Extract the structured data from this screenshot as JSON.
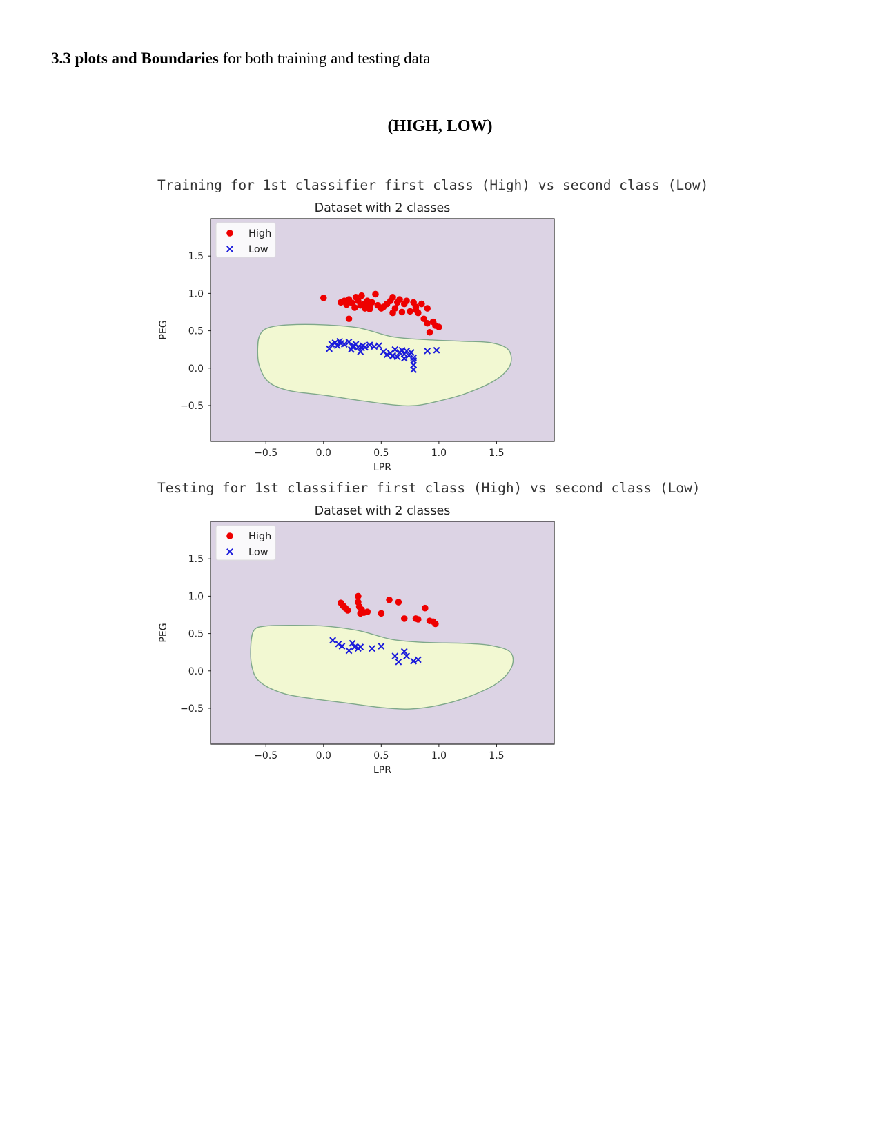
{
  "heading": {
    "bold": "3.3 plots and Boundaries",
    "rest": " for both training and testing data"
  },
  "subheading": "(HIGH, LOW)",
  "captions": [
    "Training for 1st classifier first class (High) vs second class (Low)",
    "Testing for 1st classifier first class (High) vs second class (Low)"
  ],
  "colors": {
    "background_region": "#dcd3e4",
    "decision_region": "#f2f8d2",
    "boundary": "#7fa88a",
    "high": "#ee0000",
    "low": "#1a1adb"
  },
  "chart_data": [
    {
      "type": "scatter",
      "title": "Dataset with 2 classes",
      "xlabel": "LPR",
      "ylabel": "PEG",
      "xlim": [
        -0.98,
        2.0
      ],
      "ylim": [
        -0.98,
        2.0
      ],
      "xticks": [
        "−0.5",
        "0.0",
        "0.5",
        "1.0",
        "1.5"
      ],
      "xtick_values": [
        -0.5,
        0.0,
        0.5,
        1.0,
        1.5
      ],
      "yticks": [
        "1.5",
        "1.0",
        "0.5",
        "0.0",
        "−0.5"
      ],
      "ytick_values": [
        1.5,
        1.0,
        0.5,
        0.0,
        -0.5
      ],
      "legend": "upper left",
      "boundary": [
        [
          -0.55,
          0.45
        ],
        [
          -0.48,
          0.54
        ],
        [
          -0.3,
          0.58
        ],
        [
          0.0,
          0.58
        ],
        [
          0.3,
          0.54
        ],
        [
          0.6,
          0.42
        ],
        [
          0.9,
          0.38
        ],
        [
          1.2,
          0.36
        ],
        [
          1.45,
          0.34
        ],
        [
          1.6,
          0.25
        ],
        [
          1.62,
          0.05
        ],
        [
          1.5,
          -0.15
        ],
        [
          1.25,
          -0.33
        ],
        [
          1.0,
          -0.44
        ],
        [
          0.8,
          -0.5
        ],
        [
          0.6,
          -0.49
        ],
        [
          0.3,
          -0.43
        ],
        [
          0.0,
          -0.36
        ],
        [
          -0.3,
          -0.3
        ],
        [
          -0.48,
          -0.18
        ],
        [
          -0.56,
          0.05
        ],
        [
          -0.57,
          0.3
        ]
      ],
      "series": [
        {
          "name": "High",
          "marker": "circle",
          "x": [
            0.0,
            0.15,
            0.18,
            0.2,
            0.22,
            0.25,
            0.27,
            0.28,
            0.3,
            0.32,
            0.33,
            0.35,
            0.36,
            0.38,
            0.4,
            0.42,
            0.45,
            0.47,
            0.5,
            0.52,
            0.55,
            0.58,
            0.6,
            0.62,
            0.64,
            0.66,
            0.68,
            0.7,
            0.72,
            0.75,
            0.78,
            0.8,
            0.82,
            0.85,
            0.87,
            0.9,
            0.92,
            0.95,
            0.97,
            1.0,
            0.22,
            0.4,
            0.6,
            0.8,
            0.9
          ],
          "y": [
            0.94,
            0.88,
            0.9,
            0.85,
            0.92,
            0.87,
            0.81,
            0.95,
            0.9,
            0.84,
            0.97,
            0.86,
            0.8,
            0.9,
            0.83,
            0.88,
            0.99,
            0.84,
            0.8,
            0.82,
            0.86,
            0.9,
            0.95,
            0.8,
            0.88,
            0.92,
            0.75,
            0.86,
            0.9,
            0.76,
            0.88,
            0.82,
            0.74,
            0.86,
            0.66,
            0.6,
            0.48,
            0.62,
            0.57,
            0.55,
            0.66,
            0.79,
            0.74,
            0.78,
            0.8
          ]
        },
        {
          "name": "Low",
          "marker": "x",
          "x": [
            0.05,
            0.07,
            0.1,
            0.12,
            0.14,
            0.15,
            0.18,
            0.22,
            0.24,
            0.26,
            0.28,
            0.3,
            0.32,
            0.34,
            0.36,
            0.4,
            0.44,
            0.48,
            0.52,
            0.55,
            0.58,
            0.6,
            0.62,
            0.64,
            0.66,
            0.68,
            0.7,
            0.72,
            0.74,
            0.76,
            0.78,
            0.78,
            0.78,
            0.78,
            0.9,
            0.98,
            0.25,
            0.33,
            0.6,
            0.7
          ],
          "y": [
            0.26,
            0.32,
            0.34,
            0.3,
            0.36,
            0.33,
            0.32,
            0.35,
            0.25,
            0.3,
            0.32,
            0.28,
            0.22,
            0.3,
            0.28,
            0.31,
            0.29,
            0.3,
            0.22,
            0.18,
            0.2,
            0.17,
            0.25,
            0.15,
            0.21,
            0.24,
            0.19,
            0.23,
            0.17,
            0.21,
            0.1,
            0.04,
            -0.02,
            0.14,
            0.23,
            0.24,
            0.29,
            0.27,
            0.16,
            0.13
          ]
        }
      ]
    },
    {
      "type": "scatter",
      "title": "Dataset with 2 classes",
      "xlabel": "LPR",
      "ylabel": "PEG",
      "xlim": [
        -0.98,
        2.0
      ],
      "ylim": [
        -0.98,
        2.0
      ],
      "xticks": [
        "−0.5",
        "0.0",
        "0.5",
        "1.0",
        "1.5"
      ],
      "xtick_values": [
        -0.5,
        0.0,
        0.5,
        1.0,
        1.5
      ],
      "yticks": [
        "1.5",
        "1.0",
        "0.5",
        "0.0",
        "−0.5"
      ],
      "ytick_values": [
        1.5,
        1.0,
        0.5,
        0.0,
        -0.5
      ],
      "legend": "upper left",
      "boundary": [
        [
          -0.6,
          0.55
        ],
        [
          -0.5,
          0.6
        ],
        [
          -0.3,
          0.61
        ],
        [
          0.0,
          0.6
        ],
        [
          0.3,
          0.54
        ],
        [
          0.6,
          0.42
        ],
        [
          0.9,
          0.38
        ],
        [
          1.2,
          0.37
        ],
        [
          1.45,
          0.34
        ],
        [
          1.62,
          0.25
        ],
        [
          1.63,
          0.05
        ],
        [
          1.5,
          -0.17
        ],
        [
          1.25,
          -0.35
        ],
        [
          1.0,
          -0.46
        ],
        [
          0.75,
          -0.51
        ],
        [
          0.5,
          -0.49
        ],
        [
          0.2,
          -0.43
        ],
        [
          -0.1,
          -0.37
        ],
        [
          -0.35,
          -0.3
        ],
        [
          -0.55,
          -0.15
        ],
        [
          -0.62,
          0.05
        ],
        [
          -0.63,
          0.35
        ]
      ],
      "series": [
        {
          "name": "High",
          "marker": "circle",
          "x": [
            0.15,
            0.17,
            0.19,
            0.21,
            0.3,
            0.3,
            0.31,
            0.33,
            0.35,
            0.38,
            0.5,
            0.57,
            0.65,
            0.7,
            0.8,
            0.82,
            0.88,
            0.92,
            0.95,
            0.97,
            0.32
          ],
          "y": [
            0.91,
            0.87,
            0.84,
            0.81,
            1.0,
            0.92,
            0.86,
            0.82,
            0.78,
            0.79,
            0.77,
            0.95,
            0.92,
            0.7,
            0.7,
            0.69,
            0.84,
            0.67,
            0.66,
            0.63,
            0.77
          ]
        },
        {
          "name": "Low",
          "marker": "x",
          "x": [
            0.08,
            0.13,
            0.16,
            0.22,
            0.25,
            0.27,
            0.3,
            0.32,
            0.42,
            0.5,
            0.62,
            0.65,
            0.7,
            0.72,
            0.78,
            0.82
          ],
          "y": [
            0.41,
            0.36,
            0.33,
            0.27,
            0.37,
            0.32,
            0.3,
            0.32,
            0.3,
            0.33,
            0.2,
            0.12,
            0.26,
            0.2,
            0.13,
            0.15
          ]
        }
      ]
    }
  ]
}
